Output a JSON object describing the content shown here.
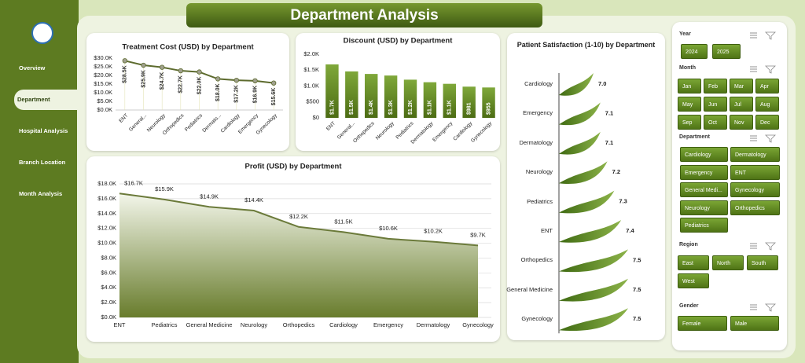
{
  "header": {
    "title": "Department Analysis"
  },
  "sidebar": {
    "items": [
      "Overview",
      "Department",
      "Hospital Analysis",
      "Branch Location",
      "Month Analysis"
    ],
    "selected": 1
  },
  "chart_data": [
    {
      "type": "line",
      "title": "Treatment Cost (USD) by Department",
      "categories": [
        "ENT",
        "General...",
        "Neurology",
        "Orthopedics",
        "Pediatrics",
        "Dermato...",
        "Cardiology",
        "Emergency",
        "Gynecology"
      ],
      "values": [
        28500,
        25900,
        24700,
        22700,
        22000,
        18000,
        17200,
        16900,
        15600
      ],
      "value_labels": [
        "$28.5K",
        "$25.9K",
        "$24.7K",
        "$22.7K",
        "$22.0K",
        "$18.0K",
        "$17.2K",
        "$16.9K",
        "$15.6K"
      ],
      "color": "#5d6b2e",
      "ylim": [
        0,
        30000
      ],
      "yticks": [
        {
          "value": 0,
          "label": "$0.0K"
        },
        {
          "value": 5000,
          "label": "$5.0K"
        },
        {
          "value": 10000,
          "label": "$10.0K"
        },
        {
          "value": 15000,
          "label": "$15.0K"
        },
        {
          "value": 20000,
          "label": "$20.0K"
        },
        {
          "value": 25000,
          "label": "$25.0K"
        },
        {
          "value": 30000,
          "label": "$30.0K"
        }
      ],
      "grid": false
    },
    {
      "type": "bar",
      "title": "Discount (USD) by Department",
      "categories": [
        "ENT",
        "General...",
        "Orthopedics",
        "Neurology",
        "Pediatrics",
        "Dermatology",
        "Emergency",
        "Cardiology",
        "Gynecology"
      ],
      "values": [
        1680,
        1460,
        1380,
        1330,
        1200,
        1120,
        1070,
        981,
        955
      ],
      "value_labels": [
        "$1.7K",
        "$1.5K",
        "$1.4K",
        "$1.3K",
        "$1.2K",
        "$1.1K",
        "$1.1K",
        "$981",
        "$955"
      ],
      "color": "#628827",
      "ylim": [
        0,
        2000
      ],
      "yticks": [
        {
          "value": 0,
          "label": "$0"
        },
        {
          "value": 500,
          "label": "$500"
        },
        {
          "value": 1000,
          "label": "$1.0K"
        },
        {
          "value": 1500,
          "label": "$1.5K"
        },
        {
          "value": 2000,
          "label": "$2.0K"
        }
      ],
      "grid": false
    },
    {
      "type": "area",
      "title": "Profit (USD) by Department",
      "categories": [
        "ENT",
        "Pediatrics",
        "General Medicine",
        "Neurology",
        "Orthopedics",
        "Cardiology",
        "Emergency",
        "Dermatology",
        "Gynecology"
      ],
      "values": [
        16700,
        15900,
        14900,
        14400,
        12200,
        11500,
        10600,
        10200,
        9700
      ],
      "value_labels": [
        "$16.7K",
        "$15.9K",
        "$14.9K",
        "$14.4K",
        "$12.2K",
        "$11.5K",
        "$10.6K",
        "$10.2K",
        "$9.7K"
      ],
      "color": "#6b7a3a",
      "ylim": [
        0,
        18000
      ],
      "yticks": [
        {
          "value": 0,
          "label": "$0.0K"
        },
        {
          "value": 2000,
          "label": "$2.0K"
        },
        {
          "value": 4000,
          "label": "$4.0K"
        },
        {
          "value": 6000,
          "label": "$6.0K"
        },
        {
          "value": 8000,
          "label": "$8.0K"
        },
        {
          "value": 10000,
          "label": "$10.0K"
        },
        {
          "value": 12000,
          "label": "$12.0K"
        },
        {
          "value": 14000,
          "label": "$14.0K"
        },
        {
          "value": 16000,
          "label": "$16.0K"
        },
        {
          "value": 18000,
          "label": "$18.0K"
        }
      ],
      "grid": true
    },
    {
      "type": "barh",
      "title": "Patient Satisfaction (1-10) by Department",
      "categories": [
        "Cardiology",
        "Emergency",
        "Dermatology",
        "Neurology",
        "Pediatrics",
        "ENT",
        "Orthopedics",
        "General Medicine",
        "Gynecology"
      ],
      "values": [
        7.0,
        7.1,
        7.1,
        7.2,
        7.3,
        7.4,
        7.5,
        7.5,
        7.5
      ],
      "value_labels": [
        "7.0",
        "7.1",
        "7.1",
        "7.2",
        "7.3",
        "7.4",
        "7.5",
        "7.5",
        "7.5"
      ],
      "color": "#5c8a1f",
      "xlim": [
        6.5,
        8.0
      ]
    }
  ],
  "slicers": [
    {
      "title": "Year",
      "items": [
        "2024",
        "2025"
      ]
    },
    {
      "title": "Month",
      "items": [
        "Jan",
        "Feb",
        "Mar",
        "Apr",
        "May",
        "Jun",
        "Jul",
        "Aug",
        "Sep",
        "Oct",
        "Nov",
        "Dec"
      ]
    },
    {
      "title": "Department",
      "items": [
        "Cardiology",
        "Dermatology",
        "Emergency",
        "ENT",
        "General Medi...",
        "Gynecology",
        "Neurology",
        "Orthopedics",
        "Pediatrics"
      ]
    },
    {
      "title": "Region",
      "items": [
        "East",
        "North",
        "South",
        "West"
      ]
    },
    {
      "title": "Gender",
      "items": [
        "Female",
        "Male"
      ]
    }
  ]
}
